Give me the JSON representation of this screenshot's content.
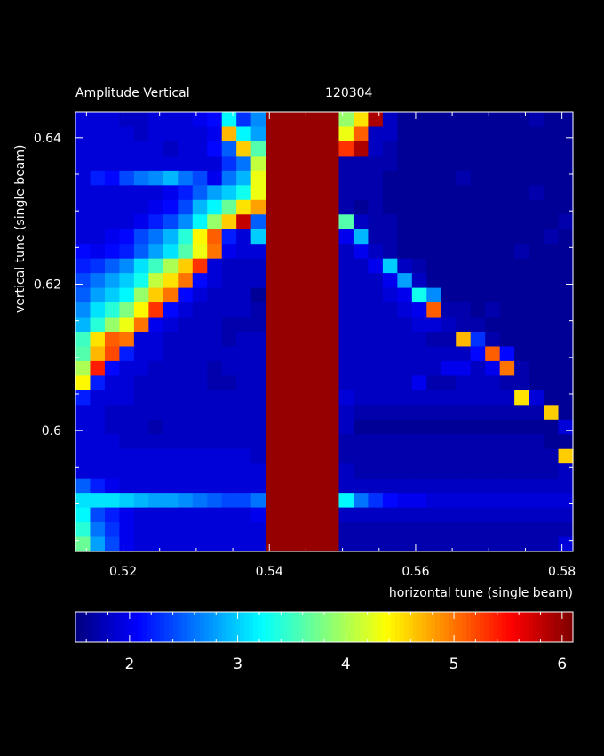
{
  "chart_data": {
    "type": "heatmap",
    "title": "Amplitude Vertical",
    "subtitle": "120304",
    "xlabel": "horizontal tune (single beam)",
    "ylabel": "vertical tune (single beam)",
    "xlim": [
      0.5135,
      0.5815
    ],
    "ylim": [
      0.5835,
      0.6435
    ],
    "x_ticks": [
      "0.52",
      "0.54",
      "0.56",
      "0.58"
    ],
    "y_ticks": [
      "0.6",
      "0.62",
      "0.64"
    ],
    "colorbar": {
      "range": [
        1.5,
        6.1
      ],
      "ticks": [
        "2",
        "3",
        "4",
        "5",
        "6"
      ],
      "colormap": "jet"
    },
    "x": [
      0.5145,
      0.5165,
      0.5185,
      0.5205,
      0.5225,
      0.5245,
      0.5265,
      0.5285,
      0.5305,
      0.5325,
      0.5345,
      0.5365,
      0.5385,
      0.5405,
      0.5425,
      0.5445,
      0.5465,
      0.5485,
      0.5505,
      0.5525,
      0.5545,
      0.5565,
      0.5585,
      0.5605,
      0.5625,
      0.5645,
      0.5665,
      0.5685,
      0.5705,
      0.5725,
      0.5745,
      0.5765,
      0.5785,
      0.5805
    ],
    "y": [
      0.6425,
      0.6405,
      0.6385,
      0.6365,
      0.6345,
      0.6325,
      0.6305,
      0.6285,
      0.6265,
      0.6245,
      0.6225,
      0.6205,
      0.6185,
      0.6165,
      0.6145,
      0.6125,
      0.6105,
      0.6085,
      0.6065,
      0.6045,
      0.6025,
      0.6005,
      0.5985,
      0.5965,
      0.5945,
      0.5925,
      0.5905,
      0.5885,
      0.5865,
      0.5845
    ],
    "z": [
      [
        1.9,
        1.9,
        1.9,
        1.8,
        1.8,
        1.9,
        1.9,
        1.9,
        2.0,
        2.1,
        3.2,
        2.3,
        2.7,
        6.0,
        6.0,
        6.0,
        6.0,
        6.0,
        3.9,
        4.5,
        5.9,
        1.8,
        1.6,
        1.6,
        1.6,
        1.6,
        1.6,
        1.6,
        1.6,
        1.6,
        1.6,
        1.7,
        1.6,
        1.6
      ],
      [
        1.9,
        1.9,
        1.9,
        1.9,
        1.8,
        1.9,
        1.9,
        1.9,
        1.9,
        2.0,
        4.7,
        3.2,
        2.8,
        6.0,
        6.0,
        6.0,
        6.0,
        6.0,
        4.3,
        5.1,
        1.8,
        1.8,
        1.6,
        1.6,
        1.6,
        1.6,
        1.6,
        1.6,
        1.6,
        1.6,
        1.6,
        1.6,
        1.6,
        1.6
      ],
      [
        1.9,
        1.9,
        1.9,
        1.9,
        1.9,
        1.9,
        1.8,
        1.9,
        1.9,
        2.1,
        2.5,
        4.6,
        3.6,
        6.0,
        6.0,
        6.0,
        6.0,
        6.0,
        5.3,
        5.9,
        1.8,
        1.7,
        1.6,
        1.6,
        1.6,
        1.6,
        1.6,
        1.6,
        1.6,
        1.6,
        1.6,
        1.6,
        1.6,
        1.6
      ],
      [
        1.9,
        1.9,
        1.9,
        1.9,
        1.9,
        1.9,
        1.9,
        1.9,
        1.9,
        1.9,
        2.3,
        2.6,
        4.1,
        6.0,
        6.0,
        6.0,
        6.0,
        6.0,
        1.7,
        1.7,
        1.7,
        1.7,
        1.6,
        1.6,
        1.6,
        1.6,
        1.6,
        1.6,
        1.6,
        1.6,
        1.6,
        1.6,
        1.6,
        1.6
      ],
      [
        1.9,
        2.2,
        2.1,
        2.4,
        2.6,
        2.7,
        2.9,
        2.6,
        2.4,
        2.0,
        2.6,
        2.9,
        4.3,
        6.0,
        6.0,
        6.0,
        6.0,
        6.0,
        1.7,
        1.7,
        1.7,
        1.6,
        1.6,
        1.6,
        1.6,
        1.6,
        1.7,
        1.6,
        1.6,
        1.6,
        1.6,
        1.6,
        1.6,
        1.6
      ],
      [
        1.9,
        1.9,
        1.9,
        1.9,
        1.9,
        1.9,
        2.0,
        2.2,
        2.5,
        2.8,
        3.0,
        3.3,
        4.3,
        6.0,
        6.0,
        6.0,
        6.0,
        6.0,
        1.7,
        1.7,
        1.7,
        1.6,
        1.6,
        1.6,
        1.6,
        1.6,
        1.6,
        1.6,
        1.6,
        1.6,
        1.6,
        1.7,
        1.6,
        1.6
      ],
      [
        1.9,
        1.9,
        1.9,
        1.9,
        1.9,
        2.0,
        2.1,
        2.4,
        2.9,
        3.2,
        3.7,
        4.5,
        4.8,
        6.0,
        6.0,
        6.0,
        6.0,
        6.0,
        1.7,
        1.6,
        1.7,
        1.6,
        1.6,
        1.6,
        1.6,
        1.6,
        1.6,
        1.6,
        1.6,
        1.6,
        1.6,
        1.6,
        1.6,
        1.6
      ],
      [
        1.9,
        1.9,
        1.9,
        1.9,
        2.0,
        2.2,
        2.4,
        2.7,
        3.2,
        3.9,
        4.6,
        5.8,
        2.5,
        6.0,
        6.0,
        6.0,
        6.0,
        6.0,
        3.6,
        1.8,
        1.7,
        1.7,
        1.6,
        1.6,
        1.6,
        1.6,
        1.6,
        1.6,
        1.6,
        1.6,
        1.6,
        1.6,
        1.6,
        1.7
      ],
      [
        1.9,
        1.9,
        2.0,
        2.1,
        2.4,
        2.6,
        2.9,
        3.4,
        4.4,
        5.1,
        2.2,
        1.9,
        3.0,
        6.0,
        6.0,
        6.0,
        6.0,
        6.0,
        2.0,
        2.9,
        1.7,
        1.7,
        1.6,
        1.6,
        1.6,
        1.6,
        1.6,
        1.6,
        1.6,
        1.6,
        1.6,
        1.6,
        1.7,
        1.6
      ],
      [
        2.1,
        2.0,
        2.1,
        2.2,
        2.5,
        2.8,
        3.1,
        3.6,
        4.3,
        5.0,
        2.0,
        1.9,
        1.9,
        6.0,
        6.0,
        6.0,
        6.0,
        6.0,
        1.8,
        2.0,
        1.8,
        1.7,
        1.6,
        1.6,
        1.6,
        1.6,
        1.6,
        1.6,
        1.6,
        1.6,
        1.7,
        1.6,
        1.6,
        1.6
      ],
      [
        2.2,
        2.3,
        2.5,
        2.7,
        3.1,
        3.5,
        4.0,
        4.6,
        5.3,
        1.9,
        1.8,
        1.8,
        1.8,
        6.0,
        6.0,
        6.0,
        6.0,
        6.0,
        1.8,
        1.8,
        2.0,
        3.0,
        1.8,
        1.7,
        1.6,
        1.6,
        1.6,
        1.6,
        1.6,
        1.6,
        1.6,
        1.6,
        1.6,
        1.6
      ],
      [
        2.4,
        2.6,
        2.8,
        3.0,
        3.3,
        4.1,
        4.5,
        5.0,
        2.1,
        1.9,
        1.8,
        1.8,
        1.8,
        6.0,
        6.0,
        6.0,
        6.0,
        6.0,
        1.8,
        1.8,
        1.8,
        2.0,
        2.8,
        1.8,
        1.6,
        1.6,
        1.6,
        1.6,
        1.6,
        1.6,
        1.6,
        1.6,
        1.6,
        1.6
      ],
      [
        2.5,
        2.8,
        3.0,
        3.2,
        3.9,
        4.6,
        5.0,
        2.1,
        1.9,
        1.8,
        1.8,
        1.8,
        1.6,
        6.0,
        6.0,
        6.0,
        6.0,
        6.0,
        1.8,
        1.8,
        1.8,
        1.9,
        2.0,
        3.3,
        2.7,
        1.6,
        1.6,
        1.6,
        1.6,
        1.6,
        1.6,
        1.6,
        1.6,
        1.6
      ],
      [
        2.7,
        3.1,
        3.4,
        3.8,
        4.4,
        5.3,
        2.1,
        1.9,
        1.8,
        1.8,
        1.8,
        1.8,
        1.7,
        6.0,
        6.0,
        6.0,
        6.0,
        6.0,
        1.8,
        1.8,
        1.8,
        1.8,
        1.9,
        2.0,
        5.1,
        1.7,
        1.7,
        1.6,
        1.7,
        1.6,
        1.6,
        1.6,
        1.6,
        1.6
      ],
      [
        2.9,
        3.4,
        3.9,
        4.3,
        5.0,
        2.0,
        1.9,
        1.8,
        1.8,
        1.8,
        1.7,
        1.7,
        1.7,
        6.0,
        6.0,
        6.0,
        6.0,
        6.0,
        1.8,
        1.8,
        1.8,
        1.8,
        1.8,
        1.9,
        1.9,
        1.8,
        1.7,
        1.7,
        1.6,
        1.6,
        1.6,
        1.6,
        1.6,
        1.6
      ],
      [
        3.5,
        4.5,
        5.1,
        5.0,
        1.9,
        1.9,
        1.8,
        1.8,
        1.8,
        1.8,
        1.7,
        1.8,
        1.8,
        6.0,
        6.0,
        6.0,
        6.0,
        6.0,
        1.8,
        1.8,
        1.8,
        1.8,
        1.8,
        1.8,
        1.7,
        1.7,
        4.7,
        2.3,
        1.7,
        1.6,
        1.6,
        1.6,
        1.6,
        1.6
      ],
      [
        3.6,
        4.7,
        5.2,
        2.2,
        1.9,
        1.9,
        1.8,
        1.8,
        1.8,
        1.8,
        1.8,
        1.8,
        1.8,
        6.0,
        6.0,
        6.0,
        6.0,
        6.0,
        1.8,
        1.8,
        1.8,
        1.8,
        1.8,
        1.8,
        1.8,
        1.8,
        1.8,
        2.1,
        5.1,
        2.1,
        1.6,
        1.6,
        1.6,
        1.6
      ],
      [
        4.0,
        5.4,
        2.1,
        1.9,
        1.9,
        1.8,
        1.8,
        1.8,
        1.8,
        1.7,
        1.8,
        1.8,
        1.8,
        6.0,
        6.0,
        6.0,
        6.0,
        6.0,
        1.8,
        1.8,
        1.8,
        1.8,
        1.8,
        1.8,
        1.8,
        2.0,
        2.0,
        1.8,
        2.0,
        5.0,
        1.7,
        1.6,
        1.6,
        1.6
      ],
      [
        4.4,
        2.2,
        1.9,
        1.9,
        1.8,
        1.8,
        1.8,
        1.8,
        1.8,
        1.7,
        1.7,
        1.8,
        1.8,
        6.0,
        6.0,
        6.0,
        6.0,
        6.0,
        1.8,
        1.8,
        1.8,
        1.8,
        1.8,
        2.0,
        1.7,
        1.7,
        1.8,
        1.8,
        1.8,
        1.7,
        1.7,
        1.6,
        1.6,
        1.6
      ],
      [
        2.2,
        1.9,
        1.9,
        1.9,
        1.8,
        1.8,
        1.8,
        1.8,
        1.8,
        1.8,
        1.8,
        1.8,
        1.8,
        6.0,
        6.0,
        6.0,
        6.0,
        6.0,
        1.9,
        1.8,
        1.8,
        1.8,
        1.8,
        1.8,
        1.8,
        1.8,
        1.8,
        1.8,
        1.8,
        1.8,
        4.5,
        1.9,
        1.6,
        1.6
      ],
      [
        1.9,
        1.9,
        1.8,
        1.8,
        1.8,
        1.8,
        1.8,
        1.8,
        1.8,
        1.8,
        1.8,
        1.8,
        1.8,
        6.0,
        6.0,
        6.0,
        6.0,
        6.0,
        1.8,
        1.7,
        1.7,
        1.7,
        1.7,
        1.7,
        1.7,
        1.7,
        1.7,
        1.7,
        1.7,
        1.7,
        1.7,
        1.7,
        4.6,
        1.6
      ],
      [
        1.9,
        1.9,
        1.8,
        1.8,
        1.8,
        1.7,
        1.8,
        1.8,
        1.8,
        1.8,
        1.8,
        1.8,
        1.8,
        6.0,
        6.0,
        6.0,
        6.0,
        6.0,
        1.8,
        1.6,
        1.6,
        1.6,
        1.6,
        1.6,
        1.6,
        1.6,
        1.6,
        1.6,
        1.6,
        1.6,
        1.6,
        1.6,
        1.6,
        1.9
      ],
      [
        1.9,
        1.9,
        1.9,
        1.8,
        1.8,
        1.8,
        1.8,
        1.8,
        1.8,
        1.8,
        1.8,
        1.8,
        1.8,
        6.0,
        6.0,
        6.0,
        6.0,
        6.0,
        1.7,
        1.7,
        1.7,
        1.7,
        1.7,
        1.7,
        1.7,
        1.7,
        1.7,
        1.7,
        1.7,
        1.7,
        1.7,
        1.7,
        1.6,
        1.6
      ],
      [
        1.9,
        1.9,
        1.9,
        1.9,
        1.9,
        1.9,
        1.9,
        1.9,
        1.9,
        1.9,
        1.9,
        1.9,
        1.8,
        6.0,
        6.0,
        6.0,
        6.0,
        6.0,
        1.7,
        1.7,
        1.7,
        1.7,
        1.7,
        1.7,
        1.7,
        1.7,
        1.7,
        1.7,
        1.7,
        1.7,
        1.7,
        1.7,
        1.7,
        4.6
      ],
      [
        1.9,
        1.9,
        1.9,
        1.9,
        1.9,
        1.9,
        1.9,
        1.9,
        1.9,
        1.9,
        1.9,
        1.9,
        1.9,
        6.0,
        6.0,
        6.0,
        6.0,
        6.0,
        1.8,
        1.7,
        1.7,
        1.7,
        1.7,
        1.7,
        1.7,
        1.7,
        1.7,
        1.7,
        1.7,
        1.7,
        1.7,
        1.7,
        1.7,
        1.8
      ],
      [
        2.5,
        2.2,
        2.0,
        1.9,
        1.9,
        1.9,
        1.9,
        1.9,
        1.9,
        1.9,
        1.9,
        1.9,
        1.9,
        6.0,
        6.0,
        6.0,
        6.0,
        6.0,
        1.8,
        1.8,
        1.8,
        1.8,
        1.8,
        1.8,
        1.8,
        1.8,
        1.8,
        1.8,
        1.8,
        1.8,
        1.8,
        1.8,
        1.8,
        1.8
      ],
      [
        3.1,
        3.1,
        3.1,
        3.0,
        2.9,
        2.8,
        2.8,
        2.7,
        2.6,
        2.5,
        2.4,
        2.4,
        2.6,
        6.0,
        6.0,
        6.0,
        6.0,
        6.0,
        3.2,
        2.6,
        2.3,
        2.1,
        2.0,
        2.0,
        1.9,
        1.9,
        1.9,
        1.9,
        1.9,
        1.9,
        1.9,
        1.9,
        1.9,
        1.9
      ],
      [
        3.2,
        2.4,
        2.2,
        2.0,
        1.9,
        1.9,
        1.9,
        1.9,
        1.9,
        1.9,
        1.9,
        1.9,
        2.0,
        6.0,
        6.0,
        6.0,
        6.0,
        6.0,
        1.8,
        1.8,
        1.8,
        1.8,
        1.8,
        1.8,
        1.8,
        1.8,
        1.8,
        1.8,
        1.8,
        1.8,
        1.8,
        1.8,
        1.8,
        1.8
      ],
      [
        3.4,
        2.6,
        2.3,
        2.0,
        1.9,
        1.9,
        1.9,
        1.9,
        1.9,
        1.9,
        1.9,
        1.9,
        1.9,
        6.0,
        6.0,
        6.0,
        6.0,
        6.0,
        1.7,
        1.7,
        1.7,
        1.7,
        1.7,
        1.7,
        1.7,
        1.7,
        1.7,
        1.7,
        1.7,
        1.7,
        1.7,
        1.7,
        1.7,
        1.7
      ],
      [
        3.7,
        2.8,
        2.4,
        2.0,
        1.9,
        1.9,
        1.9,
        1.9,
        1.9,
        1.9,
        1.9,
        1.9,
        1.9,
        6.0,
        6.0,
        6.0,
        6.0,
        6.0,
        1.7,
        1.7,
        1.7,
        1.7,
        1.7,
        1.7,
        1.7,
        1.7,
        1.7,
        1.7,
        1.7,
        1.7,
        1.7,
        1.7,
        1.7,
        1.9
      ]
    ]
  }
}
